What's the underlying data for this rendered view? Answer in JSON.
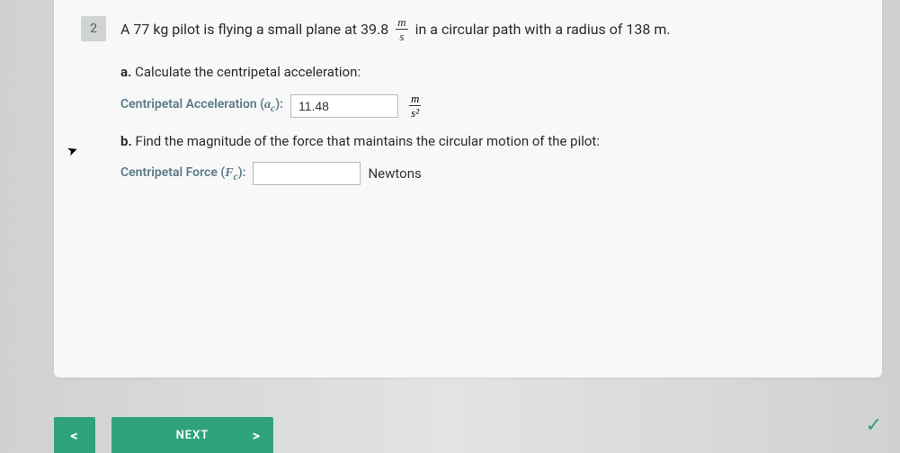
{
  "question": {
    "number": "2",
    "text_before_speed": "A 77 kg pilot is flying a small plane at 39.8",
    "speed_unit_num": "m",
    "speed_unit_den": "s",
    "text_after_speed": "in a circular path with a radius of 138 m."
  },
  "part_a": {
    "label_bold": "a.",
    "label_text": "Calculate the centripetal acceleration:",
    "input_label_pre": "Centripetal Acceleration (",
    "input_label_sym": "a",
    "input_label_sub": "c",
    "input_label_post": "):",
    "value": "11.48",
    "unit_num": "m",
    "unit_den": "s²"
  },
  "part_b": {
    "label_bold": "b.",
    "label_text": "Find the magnitude of the force that maintains the circular motion of the pilot:",
    "input_label_pre": "Centripetal Force (",
    "input_label_sym": "F",
    "input_label_sub": "c",
    "input_label_post": "):",
    "value": "",
    "unit": "Newtons"
  },
  "nav": {
    "prev": "<",
    "next_label": "NEXT",
    "next_chev": ">"
  },
  "colors": {
    "accent": "#2fa37a",
    "label": "#5a7a8a"
  }
}
